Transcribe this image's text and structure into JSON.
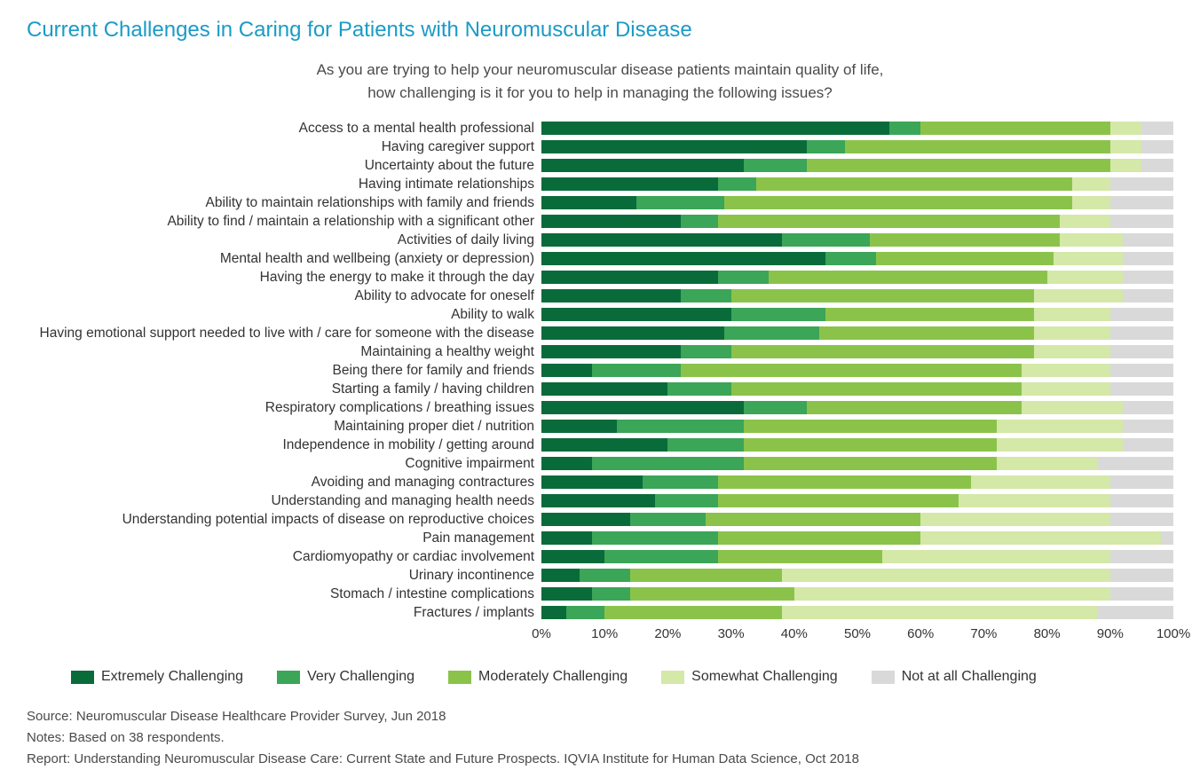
{
  "title": "Current Challenges in Caring for Patients with Neuromuscular Disease",
  "title_color": "#1a9bc7",
  "subtitle_line1": "As you are trying to help your neuromuscular disease patients maintain quality of life,",
  "subtitle_line2": "how challenging is it for you to help in managing the following issues?",
  "series_colors": {
    "extremely": "#0a6b3a",
    "very": "#3ba558",
    "moderately": "#8bc34a",
    "somewhat": "#d4e8a8",
    "notatall": "#d9d9d9"
  },
  "legend": {
    "extremely": "Extremely Challenging",
    "very": "Very Challenging",
    "moderately": "Moderately Challenging",
    "somewhat": "Somewhat Challenging",
    "notatall": "Not at all Challenging"
  },
  "axis_ticks": [
    "0%",
    "10%",
    "20%",
    "30%",
    "40%",
    "50%",
    "60%",
    "70%",
    "80%",
    "90%",
    "100%"
  ],
  "rows": [
    {
      "label": "Access to a mental health professional",
      "v": [
        55,
        5,
        30,
        5,
        5
      ]
    },
    {
      "label": "Having caregiver support",
      "v": [
        42,
        6,
        42,
        5,
        5
      ]
    },
    {
      "label": "Uncertainty about the future",
      "v": [
        32,
        10,
        48,
        5,
        5
      ]
    },
    {
      "label": "Having intimate relationships",
      "v": [
        28,
        6,
        50,
        6,
        10
      ]
    },
    {
      "label": "Ability to maintain relationships with family and friends",
      "v": [
        15,
        14,
        55,
        6,
        10
      ]
    },
    {
      "label": "Ability to find / maintain a relationship with a significant other",
      "v": [
        22,
        6,
        54,
        8,
        10
      ]
    },
    {
      "label": "Activities of daily living",
      "v": [
        38,
        14,
        30,
        10,
        8
      ]
    },
    {
      "label": "Mental health and wellbeing (anxiety or depression)",
      "v": [
        45,
        8,
        28,
        11,
        8
      ]
    },
    {
      "label": "Having the energy to make it through the day",
      "v": [
        28,
        8,
        44,
        12,
        8
      ]
    },
    {
      "label": "Ability to advocate for oneself",
      "v": [
        22,
        8,
        48,
        14,
        8
      ]
    },
    {
      "label": "Ability to walk",
      "v": [
        30,
        15,
        33,
        12,
        10
      ]
    },
    {
      "label": "Having emotional support needed to live with / care for someone with the disease",
      "v": [
        29,
        15,
        34,
        12,
        10
      ]
    },
    {
      "label": "Maintaining a healthy weight",
      "v": [
        22,
        8,
        48,
        12,
        10
      ]
    },
    {
      "label": "Being there for family and friends",
      "v": [
        8,
        14,
        54,
        14,
        10
      ]
    },
    {
      "label": "Starting a family / having children",
      "v": [
        20,
        10,
        46,
        14,
        10
      ]
    },
    {
      "label": "Respiratory complications / breathing issues",
      "v": [
        32,
        10,
        34,
        16,
        8
      ]
    },
    {
      "label": "Maintaining proper diet / nutrition",
      "v": [
        12,
        20,
        40,
        20,
        8
      ]
    },
    {
      "label": "Independence in mobility / getting around",
      "v": [
        20,
        12,
        40,
        20,
        8
      ]
    },
    {
      "label": "Cognitive impairment",
      "v": [
        8,
        24,
        40,
        16,
        12
      ]
    },
    {
      "label": "Avoiding and managing contractures",
      "v": [
        16,
        12,
        40,
        22,
        10
      ]
    },
    {
      "label": "Understanding and managing health needs",
      "v": [
        18,
        10,
        38,
        24,
        10
      ]
    },
    {
      "label": "Understanding potential impacts of disease on reproductive choices",
      "v": [
        14,
        12,
        34,
        30,
        10
      ]
    },
    {
      "label": "Pain management",
      "v": [
        8,
        20,
        32,
        38,
        2
      ]
    },
    {
      "label": "Cardiomyopathy or cardiac involvement",
      "v": [
        10,
        18,
        26,
        36,
        10
      ]
    },
    {
      "label": "Urinary incontinence",
      "v": [
        6,
        8,
        24,
        52,
        10
      ]
    },
    {
      "label": "Stomach / intestine complications",
      "v": [
        8,
        6,
        26,
        50,
        10
      ]
    },
    {
      "label": "Fractures / implants",
      "v": [
        4,
        6,
        28,
        50,
        12
      ]
    }
  ],
  "footer": {
    "source": "Source: Neuromuscular Disease Healthcare Provider Survey, Jun 2018",
    "notes": "Notes: Based on 38 respondents.",
    "report": "Report: Understanding Neuromuscular Disease Care: Current State and Future Prospects. IQVIA Institute for Human Data Science, Oct 2018"
  }
}
